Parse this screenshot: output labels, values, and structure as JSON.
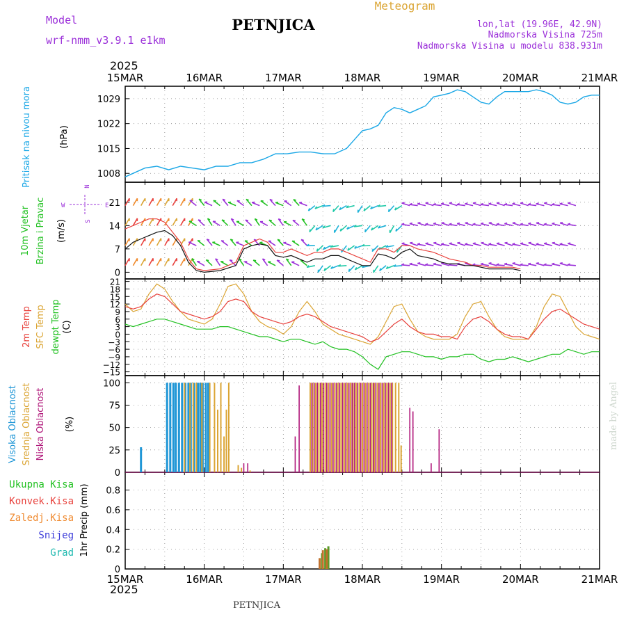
{
  "header": {
    "model_label": "Model",
    "model_name": "wrf-nmm_v3.9.1 e1km",
    "station": "PETNJICA",
    "meteogram": "Meteogram",
    "lonlat": "lon,lat (19.96E, 42.9N)",
    "elevation": "Nadmorska Visina 725m",
    "model_elevation": "Nadmorska Visina u modelu 838.931m"
  },
  "footer": {
    "station": "PETNJICA",
    "credit": "made by Angel"
  },
  "time_axis": {
    "year": "2025",
    "labels": [
      "15MAR",
      "16MAR",
      "17MAR",
      "18MAR",
      "19MAR",
      "20MAR",
      "21MAR"
    ]
  },
  "colors": {
    "pressure": "#1aa7e6",
    "temp2m": "#e8413c",
    "sfc_temp": "#dba534",
    "dewpoint": "#22c122",
    "high_cloud": "#1f96d6",
    "mid_cloud": "#dba534",
    "low_cloud": "#b0177a",
    "total_precip": "#22c122",
    "convective": "#e8413c",
    "freezing": "#ef8a30",
    "snow": "#3a3ad9",
    "hail": "#1fb9b0",
    "wind_speed": "#111111",
    "gust": "#e8413c",
    "wind_label": "#22c122",
    "compass": "#9b30d9"
  },
  "chart_data": [
    {
      "type": "line",
      "panel": "pressure",
      "ylabel_name": "Pritisak na nivou mora",
      "unit": "(hPa)",
      "ylim": [
        1005.5,
        1032.5
      ],
      "yticks": [
        1008,
        1015,
        1022,
        1029
      ],
      "x_days": [
        0,
        0.1,
        0.25,
        0.4,
        0.55,
        0.7,
        0.85,
        1.0,
        1.15,
        1.3,
        1.45,
        1.6,
        1.75,
        1.9,
        2.05,
        2.2,
        2.35,
        2.5,
        2.65,
        2.8,
        2.9,
        3.0,
        3.1,
        3.2,
        3.3,
        3.4,
        3.5,
        3.6,
        3.7,
        3.8,
        3.9,
        4.0,
        4.1,
        4.2,
        4.3,
        4.4,
        4.5,
        4.6,
        4.7,
        4.8,
        4.9,
        5.0,
        5.1,
        5.2,
        5.3,
        5.4,
        5.5,
        5.6,
        5.7,
        5.8,
        5.9,
        6.0
      ],
      "series": [
        {
          "values": [
            1007,
            1008,
            1009.5,
            1010,
            1009,
            1010,
            1009.5,
            1009,
            1010,
            1010,
            1011,
            1011,
            1012,
            1013.5,
            1013.5,
            1014,
            1014,
            1013.5,
            1013.5,
            1015,
            1017.5,
            1020,
            1020.5,
            1021.5,
            1025,
            1026.5,
            1026,
            1025,
            1026,
            1027,
            1029.5,
            1030,
            1030.5,
            1031.5,
            1031,
            1029.5,
            1028,
            1027.5,
            1029.5,
            1031,
            1031,
            1031,
            1031,
            1031.5,
            1031,
            1030,
            1028,
            1027.5,
            1028,
            1029.5,
            1030,
            1030
          ]
        }
      ]
    },
    {
      "type": "line",
      "panel": "wind",
      "ylabel_name": "10m Vjetar",
      "ylabel_name2": "Brzina i Pravac",
      "unit": "(m/s)",
      "compass": {
        "n": "N",
        "s": "S",
        "w": "W",
        "e": "E"
      },
      "ylim": [
        -2,
        27
      ],
      "yticks": [
        0,
        7,
        14,
        21
      ],
      "x_days": [
        0,
        0.1,
        0.2,
        0.3,
        0.4,
        0.5,
        0.6,
        0.7,
        0.8,
        0.9,
        1.0,
        1.2,
        1.4,
        1.5,
        1.6,
        1.7,
        1.8,
        1.9,
        2.0,
        2.1,
        2.2,
        2.3,
        2.4,
        2.5,
        2.6,
        2.7,
        2.8,
        2.9,
        3.0,
        3.1,
        3.2,
        3.3,
        3.4,
        3.5,
        3.6,
        3.7,
        3.8,
        3.9,
        4.0,
        4.1,
        4.2,
        4.3,
        4.4,
        4.5,
        4.6,
        4.7,
        4.8,
        4.9,
        5.0
      ],
      "series": [
        {
          "name": "speed",
          "values": [
            7,
            9,
            10,
            11,
            12,
            12.5,
            11,
            8,
            3,
            0.5,
            0,
            0.5,
            2,
            7,
            8,
            8.5,
            8,
            5,
            4.5,
            5,
            4,
            3,
            4,
            4,
            5,
            5,
            4,
            3,
            2,
            2,
            5.5,
            5,
            4,
            6,
            7,
            5,
            4.5,
            4,
            3,
            2.5,
            2.5,
            2,
            2,
            1.5,
            1,
            1,
            1,
            1,
            0.5
          ]
        },
        {
          "name": "gust",
          "values": [
            13,
            14,
            15,
            16,
            16,
            15,
            12,
            9,
            4,
            1,
            0.5,
            1,
            3,
            8,
            9,
            10,
            9,
            6,
            6,
            7,
            6,
            5,
            6,
            6,
            7,
            7,
            6,
            5,
            4,
            3,
            7,
            7,
            6,
            8,
            8,
            7,
            6.5,
            6,
            5,
            4,
            3.5,
            3,
            2,
            2,
            1.5,
            1.5,
            1.5,
            1.5,
            1
          ]
        }
      ]
    },
    {
      "type": "line",
      "panel": "temperature",
      "ylabel_names": [
        "2m Temp",
        "SFC Temp",
        "dewpt Temp"
      ],
      "unit": "(C)",
      "ylim": [
        -16.5,
        22
      ],
      "yticks": [
        21,
        18,
        15,
        12,
        9,
        6,
        3,
        0,
        -3,
        -6,
        -9,
        -12,
        -15
      ],
      "x_days": [
        0,
        0.1,
        0.2,
        0.3,
        0.4,
        0.5,
        0.6,
        0.7,
        0.8,
        0.9,
        1.0,
        1.1,
        1.2,
        1.3,
        1.4,
        1.5,
        1.6,
        1.7,
        1.8,
        1.9,
        2.0,
        2.1,
        2.2,
        2.3,
        2.4,
        2.5,
        2.6,
        2.7,
        2.8,
        2.9,
        3.0,
        3.1,
        3.2,
        3.3,
        3.4,
        3.5,
        3.6,
        3.7,
        3.8,
        3.9,
        4.0,
        4.1,
        4.2,
        4.3,
        4.4,
        4.5,
        4.6,
        4.7,
        4.8,
        4.9,
        5.0,
        5.1,
        5.2,
        5.3,
        5.4,
        5.5,
        5.6,
        5.7,
        5.8,
        5.9,
        6.0
      ],
      "series": [
        {
          "name": "2m",
          "values": [
            11,
            10,
            11,
            14,
            16,
            15,
            12,
            9,
            8,
            7,
            6,
            7,
            9,
            13,
            14,
            13,
            9,
            7,
            6,
            5,
            4,
            5,
            7,
            8,
            7,
            5,
            3,
            2,
            1,
            0,
            -1,
            -3,
            -2,
            1,
            4,
            6,
            3,
            1,
            0,
            0,
            -1,
            -1,
            -2,
            3,
            6,
            7,
            5,
            2,
            0,
            -1,
            -1,
            -2,
            2,
            6,
            9,
            10,
            8,
            6,
            4,
            3,
            2
          ]
        },
        {
          "name": "sfc",
          "values": [
            12,
            9,
            10,
            16,
            20,
            18,
            13,
            9,
            6,
            5,
            4,
            6,
            12,
            19,
            20,
            16,
            9,
            5,
            3,
            2,
            0,
            3,
            9,
            13,
            9,
            4,
            2,
            0,
            -1,
            -2,
            -3,
            -4,
            -1,
            5,
            11,
            12,
            6,
            1,
            -1,
            -2,
            -2,
            -2,
            0,
            7,
            12,
            13,
            7,
            2,
            -1,
            -2,
            -2,
            -2,
            3,
            11,
            16,
            15,
            9,
            3,
            0,
            -1,
            -2
          ]
        },
        {
          "name": "dewpt",
          "values": [
            4,
            3,
            4,
            5,
            6,
            6,
            5,
            4,
            3,
            2,
            2,
            2,
            3,
            3,
            2,
            1,
            0,
            -1,
            -1,
            -2,
            -3,
            -2,
            -2,
            -3,
            -4,
            -3,
            -5,
            -6,
            -6,
            -7,
            -9,
            -12,
            -14,
            -9,
            -8,
            -7,
            -7,
            -8,
            -9,
            -9,
            -10,
            -9,
            -9,
            -8,
            -8,
            -10,
            -11,
            -10,
            -10,
            -9,
            -10,
            -11,
            -10,
            -9,
            -8,
            -8,
            -6,
            -7,
            -8,
            -7,
            -7
          ]
        }
      ]
    },
    {
      "type": "bar",
      "panel": "cloud",
      "ylabel_names": [
        "Visoka Oblacnost",
        "Srednja Oblacnost",
        "Niska Oblacnost"
      ],
      "unit": "(%)",
      "ylim": [
        0,
        108
      ],
      "yticks": [
        0,
        25,
        50,
        75,
        100
      ],
      "series": [
        {
          "name": "high",
          "x_days": [
            0.2,
            0.53,
            0.57,
            0.61,
            0.64,
            0.68,
            0.72,
            0.76,
            0.8,
            0.83,
            0.87,
            0.92,
            0.95,
            0.98,
            1.02,
            1.05
          ],
          "values": [
            28,
            100,
            100,
            100,
            100,
            100,
            100,
            100,
            100,
            100,
            100,
            100,
            100,
            100,
            100,
            100
          ]
        },
        {
          "name": "mid",
          "x_days": [
            0.75,
            0.82,
            0.86,
            0.9,
            0.97,
            1.07,
            1.13,
            1.17,
            1.21,
            1.25,
            1.28,
            1.31,
            1.43,
            1.47,
            1.58,
            2.34,
            2.37,
            2.41,
            2.45,
            2.49,
            2.53,
            2.57,
            2.61,
            2.65,
            2.69,
            2.73,
            2.77,
            2.81,
            2.85,
            2.88,
            2.92,
            2.96,
            3.0,
            3.04,
            3.08,
            3.12,
            3.15,
            3.19,
            3.23,
            3.27,
            3.31,
            3.35,
            3.38,
            3.42,
            3.46,
            3.49
          ],
          "values": [
            100,
            100,
            100,
            100,
            100,
            100,
            100,
            70,
            100,
            40,
            70,
            100,
            8,
            5,
            2,
            100,
            100,
            100,
            100,
            100,
            100,
            100,
            100,
            100,
            100,
            100,
            100,
            100,
            100,
            100,
            100,
            100,
            100,
            100,
            100,
            100,
            100,
            100,
            100,
            100,
            100,
            100,
            100,
            100,
            100,
            30
          ]
        },
        {
          "name": "low",
          "x_days": [
            1.5,
            1.55,
            2.15,
            2.2,
            2.36,
            2.39,
            2.43,
            2.47,
            2.51,
            2.55,
            2.59,
            2.63,
            2.67,
            2.71,
            2.75,
            2.79,
            2.83,
            2.87,
            2.9,
            2.94,
            2.98,
            3.02,
            3.06,
            3.1,
            3.14,
            3.17,
            3.21,
            3.25,
            3.29,
            3.33,
            3.37,
            3.6,
            3.64,
            3.87,
            3.97
          ],
          "values": [
            10,
            10,
            40,
            97,
            100,
            100,
            100,
            100,
            100,
            100,
            100,
            100,
            100,
            100,
            100,
            100,
            100,
            100,
            100,
            100,
            100,
            100,
            100,
            100,
            100,
            100,
            100,
            100,
            100,
            100,
            100,
            72,
            68,
            10,
            48
          ]
        }
      ]
    },
    {
      "type": "bar",
      "panel": "precip",
      "ylabel_names": [
        "Ukupna Kisa",
        "Konvek.Kisa",
        "Zaledj.Kisa",
        "Snijeg",
        "Grad"
      ],
      "unit": "1hr Precip (mm)",
      "ylim": [
        0,
        0.98
      ],
      "yticks": [
        0,
        0.2,
        0.4,
        0.6,
        0.8
      ],
      "series": [
        {
          "name": "total",
          "x_days": [
            2.49,
            2.53,
            2.57
          ],
          "values": [
            0.16,
            0.21,
            0.23
          ]
        },
        {
          "name": "convective",
          "x_days": [
            2.46,
            2.5,
            2.55
          ],
          "values": [
            0.11,
            0.19,
            0.2
          ]
        }
      ]
    }
  ]
}
